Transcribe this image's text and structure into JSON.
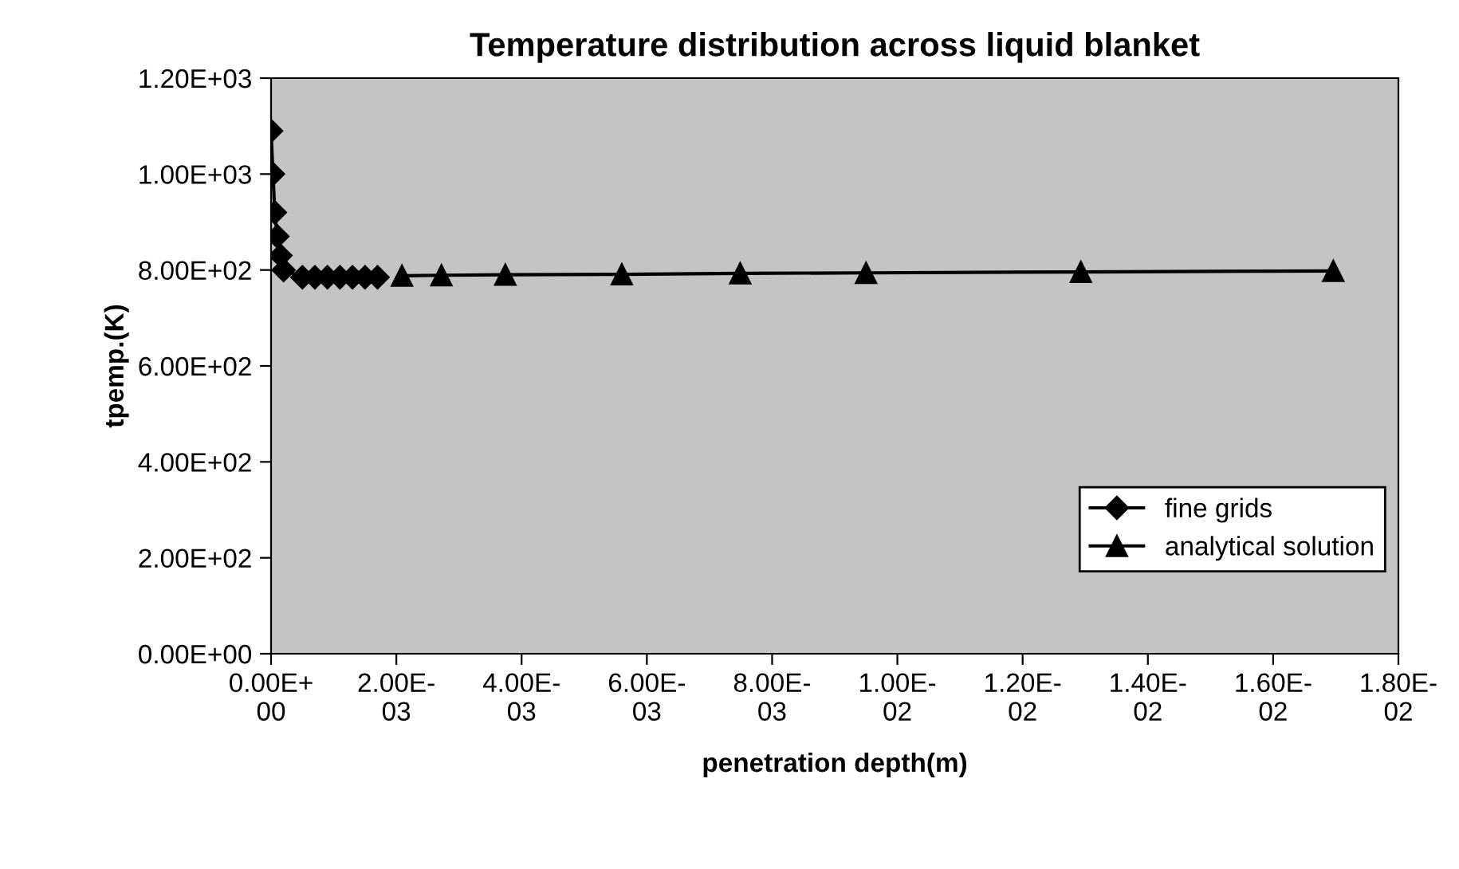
{
  "chart_data": {
    "type": "line",
    "title": "Temperature distribution across liquid blanket",
    "xlabel": "penetration depth(m)",
    "ylabel": "tpemp.(K)",
    "series": [
      {
        "name": "fine grids",
        "color": "#000000",
        "marker": "diamond",
        "x": [
          0,
          3e-05,
          6e-05,
          0.0001,
          0.00015,
          0.0002,
          0.0005,
          0.0007,
          0.0009,
          0.0011,
          0.0013,
          0.0015,
          0.0017
        ],
        "values": [
          1090,
          1000,
          920,
          870,
          830,
          800,
          785,
          785,
          785,
          785,
          785,
          785,
          785
        ]
      },
      {
        "name": "analytical solution",
        "color": "#000000",
        "marker": "triangle",
        "x": [
          0.00209,
          0.00272,
          0.00374,
          0.0056,
          0.00749,
          0.0095,
          0.01293,
          0.01696
        ],
        "values": [
          788,
          789,
          790,
          791,
          793,
          794,
          796,
          798
        ]
      }
    ],
    "xlim": [
      0,
      0.018
    ],
    "ylim": [
      0,
      1200
    ],
    "xticks": [
      {
        "value": 0,
        "label": "0.00E+00"
      },
      {
        "value": 0.002,
        "label": "2.00E-03"
      },
      {
        "value": 0.004,
        "label": "4.00E-03"
      },
      {
        "value": 0.006,
        "label": "6.00E-03"
      },
      {
        "value": 0.008,
        "label": "8.00E-03"
      },
      {
        "value": 0.01,
        "label": "1.00E-02"
      },
      {
        "value": 0.012,
        "label": "1.20E-02"
      },
      {
        "value": 0.014,
        "label": "1.40E-02"
      },
      {
        "value": 0.016,
        "label": "1.60E-02"
      },
      {
        "value": 0.018,
        "label": "1.80E-02"
      }
    ],
    "yticks": [
      {
        "value": 0,
        "label": "0.00E+00"
      },
      {
        "value": 200,
        "label": "2.00E+02"
      },
      {
        "value": 400,
        "label": "4.00E+02"
      },
      {
        "value": 600,
        "label": "6.00E+02"
      },
      {
        "value": 800,
        "label": "8.00E+02"
      },
      {
        "value": 1000,
        "label": "1.00E+03"
      },
      {
        "value": 1200,
        "label": "1.20E+03"
      }
    ],
    "grid": false,
    "legend": "lower right",
    "line_style": "solid"
  }
}
